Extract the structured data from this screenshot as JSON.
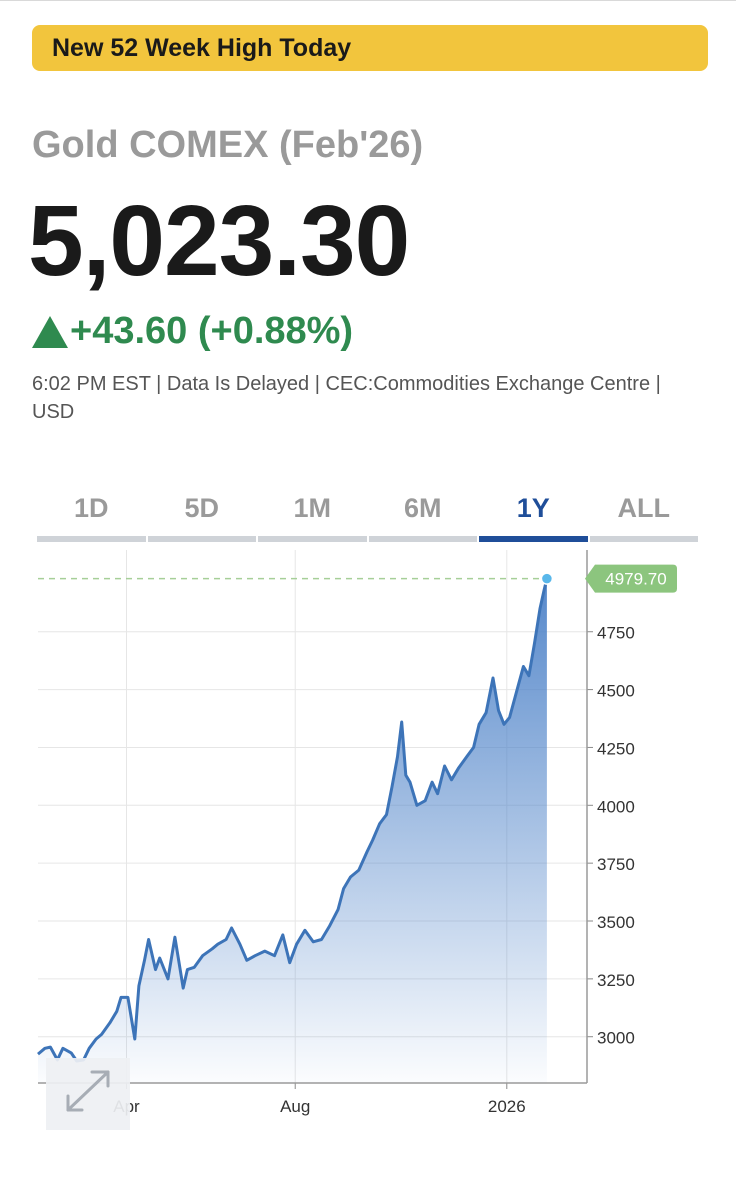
{
  "banner": {
    "text": "New 52 Week High Today"
  },
  "quote": {
    "title": "Gold COMEX (Feb'26)",
    "price": "5,023.30",
    "change": "+43.60 (+0.88%)",
    "meta": "6:02 PM EST | Data Is Delayed | CEC:Commodities Exchange Centre | USD"
  },
  "tabs": [
    {
      "label": "1D",
      "active": false
    },
    {
      "label": "5D",
      "active": false
    },
    {
      "label": "1M",
      "active": false
    },
    {
      "label": "6M",
      "active": false
    },
    {
      "label": "1Y",
      "active": true
    },
    {
      "label": "ALL",
      "active": false
    }
  ],
  "colors": {
    "line": "#3d74b8",
    "fill_top": "#4d82c8",
    "up": "#2f8a4f",
    "last_price_badge": "#8cc57e",
    "tab_active": "#1f4e99",
    "banner": "#f2c53d"
  },
  "icons": {
    "change_direction": "triangle-up-icon",
    "expand": "expand-arrows-icon"
  },
  "chart_data": {
    "type": "area",
    "xlim": [
      "2025-01-27",
      "2026-02-28"
    ],
    "ylim": [
      2800,
      5060
    ],
    "yticks": [
      3000,
      3250,
      3500,
      3750,
      4000,
      4250,
      4500,
      4750
    ],
    "ytick_labels": [
      "3000",
      "3250",
      "3500",
      "3750",
      "4000",
      "4250",
      "4500",
      "4750"
    ],
    "xticks": [
      "2025-04-01",
      "2025-08-01",
      "2026-01-01"
    ],
    "xtick_labels": [
      "Apr",
      "Aug",
      "2026"
    ],
    "last_price_label": "4979.70",
    "last_value": 4979.7,
    "grid": true,
    "series": [
      {
        "x": [
          "2025-01-27",
          "2025-02-01",
          "2025-02-05",
          "2025-02-10",
          "2025-02-14",
          "2025-02-20",
          "2025-02-24",
          "2025-03-01",
          "2025-03-05",
          "2025-03-10",
          "2025-03-14",
          "2025-03-20",
          "2025-03-25",
          "2025-03-28",
          "2025-04-02",
          "2025-04-07",
          "2025-04-10",
          "2025-04-14",
          "2025-04-17",
          "2025-04-22",
          "2025-04-25",
          "2025-05-01",
          "2025-05-06",
          "2025-05-12",
          "2025-05-15",
          "2025-05-20",
          "2025-05-26",
          "2025-06-02",
          "2025-06-06",
          "2025-06-12",
          "2025-06-16",
          "2025-06-22",
          "2025-06-27",
          "2025-07-03",
          "2025-07-10",
          "2025-07-17",
          "2025-07-23",
          "2025-07-28",
          "2025-08-02",
          "2025-08-08",
          "2025-08-14",
          "2025-08-20",
          "2025-08-26",
          "2025-09-01",
          "2025-09-05",
          "2025-09-10",
          "2025-09-16",
          "2025-09-22",
          "2025-09-26",
          "2025-10-01",
          "2025-10-06",
          "2025-10-10",
          "2025-10-14",
          "2025-10-17",
          "2025-10-20",
          "2025-10-23",
          "2025-10-28",
          "2025-11-03",
          "2025-11-08",
          "2025-11-12",
          "2025-11-17",
          "2025-11-22",
          "2025-11-27",
          "2025-12-03",
          "2025-12-08",
          "2025-12-12",
          "2025-12-17",
          "2025-12-22",
          "2025-12-26",
          "2025-12-30",
          "2026-01-03",
          "2026-01-08",
          "2026-01-13",
          "2026-01-17",
          "2026-01-21",
          "2026-01-25",
          "2026-01-28",
          "2026-01-30"
        ],
        "values": [
          2925,
          2950,
          2955,
          2900,
          2950,
          2930,
          2895,
          2900,
          2950,
          2990,
          3010,
          3060,
          3110,
          3170,
          3170,
          2990,
          3220,
          3330,
          3420,
          3290,
          3340,
          3250,
          3430,
          3210,
          3290,
          3300,
          3350,
          3380,
          3400,
          3420,
          3470,
          3400,
          3330,
          3350,
          3370,
          3350,
          3440,
          3320,
          3400,
          3460,
          3410,
          3420,
          3480,
          3550,
          3640,
          3690,
          3720,
          3800,
          3850,
          3920,
          3960,
          4080,
          4210,
          4360,
          4130,
          4100,
          4000,
          4020,
          4100,
          4050,
          4170,
          4110,
          4160,
          4210,
          4250,
          4350,
          4400,
          4550,
          4410,
          4350,
          4380,
          4490,
          4600,
          4560,
          4700,
          4850,
          4930,
          4979.7
        ]
      }
    ]
  }
}
